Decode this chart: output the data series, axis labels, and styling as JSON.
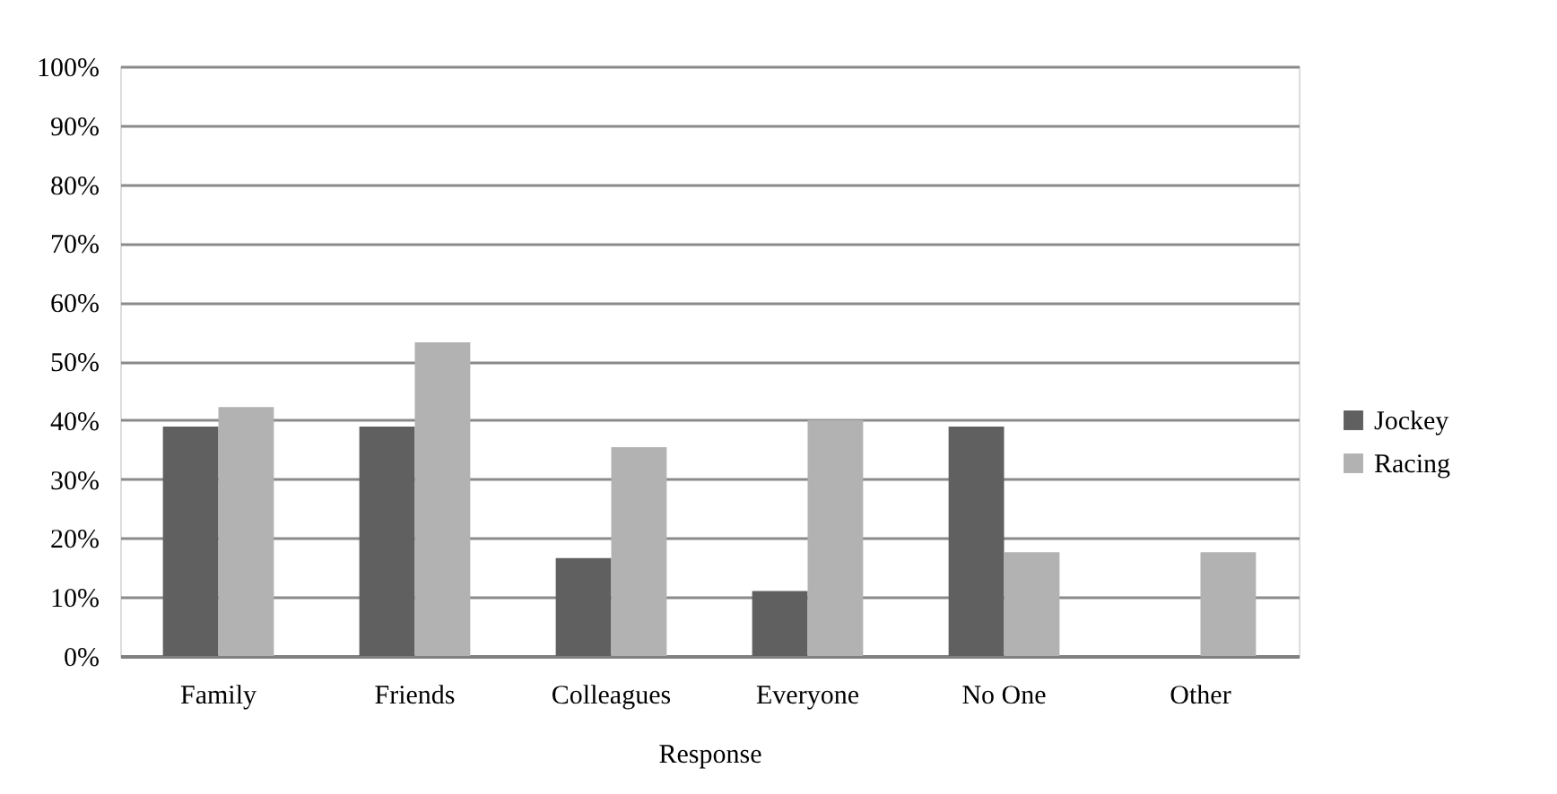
{
  "chart_data": {
    "type": "bar",
    "xlabel": "Response",
    "categories": [
      "Family",
      "Friends",
      "Colleagues",
      "Everyone",
      "No One",
      "Other"
    ],
    "series": [
      {
        "name": "Jockey",
        "color": "#606060",
        "values": [
          38.9,
          38.9,
          16.6,
          11.0,
          38.9,
          0
        ]
      },
      {
        "name": "Racing",
        "color": "#b2b2b2",
        "values": [
          42.2,
          53.2,
          35.4,
          40.0,
          17.6,
          17.6
        ]
      }
    ],
    "ylim": [
      0,
      100
    ],
    "yticks": [
      {
        "value": 0,
        "label": "0%"
      },
      {
        "value": 10,
        "label": "10%"
      },
      {
        "value": 20,
        "label": "20%"
      },
      {
        "value": 30,
        "label": "30%"
      },
      {
        "value": 40,
        "label": "40%"
      },
      {
        "value": 50,
        "label": "50%"
      },
      {
        "value": 60,
        "label": "60%"
      },
      {
        "value": 70,
        "label": "70%"
      },
      {
        "value": 80,
        "label": "80%"
      },
      {
        "value": 90,
        "label": "90%"
      },
      {
        "value": 100,
        "label": "100%"
      }
    ],
    "grid": "y",
    "legend": "right"
  }
}
